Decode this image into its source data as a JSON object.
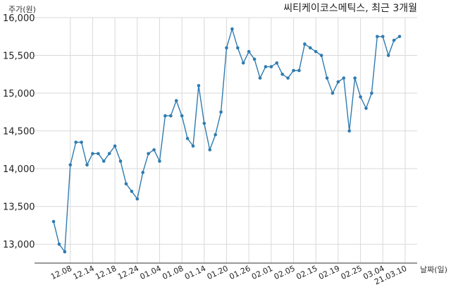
{
  "chart_data": {
    "type": "line",
    "title": "씨티케이코스메틱스, 최근 3개월",
    "ylabel": "주가(원)",
    "xlabel": "날짜(일)",
    "ylim": [
      12750,
      16000
    ],
    "yticks": [
      13000,
      13500,
      14000,
      14500,
      15000,
      15500,
      16000
    ],
    "ytick_labels": [
      "13,000",
      "13,500",
      "14,000",
      "14,500",
      "15,000",
      "15,500",
      "16,000"
    ],
    "xtick_labels": [
      "12.08",
      "12.14",
      "12.18",
      "12.24",
      "01.04",
      "01.08",
      "01.14",
      "01.20",
      "01.26",
      "02.01",
      "02.05",
      "02.15",
      "02.19",
      "02.25",
      "03.04",
      "21.03.10"
    ],
    "xtick_index": [
      3,
      7,
      11,
      15,
      19,
      23,
      27,
      31,
      35,
      39,
      43,
      47,
      51,
      55,
      59,
      63
    ],
    "grid": true,
    "color": "#2f7bb0",
    "series": [
      {
        "values": [
          13300,
          13000,
          12900,
          14050,
          14350,
          14350,
          14050,
          14200,
          14200,
          14100,
          14200,
          14300,
          14100,
          13800,
          13700,
          13600,
          13950,
          14200,
          14250,
          14100,
          14700,
          14700,
          14900,
          14700,
          14400,
          14300,
          15100,
          14600,
          14250,
          14450,
          14750,
          15600,
          15850,
          15600,
          15400,
          15550,
          15450,
          15200,
          15350,
          15350,
          15400,
          15250,
          15200,
          15300,
          15300,
          15650,
          15600,
          15550,
          15500,
          15200,
          15000,
          15150,
          15200,
          14500,
          15200,
          14950,
          14800,
          15000,
          15750,
          15750,
          15500,
          15700,
          15750
        ]
      }
    ]
  }
}
